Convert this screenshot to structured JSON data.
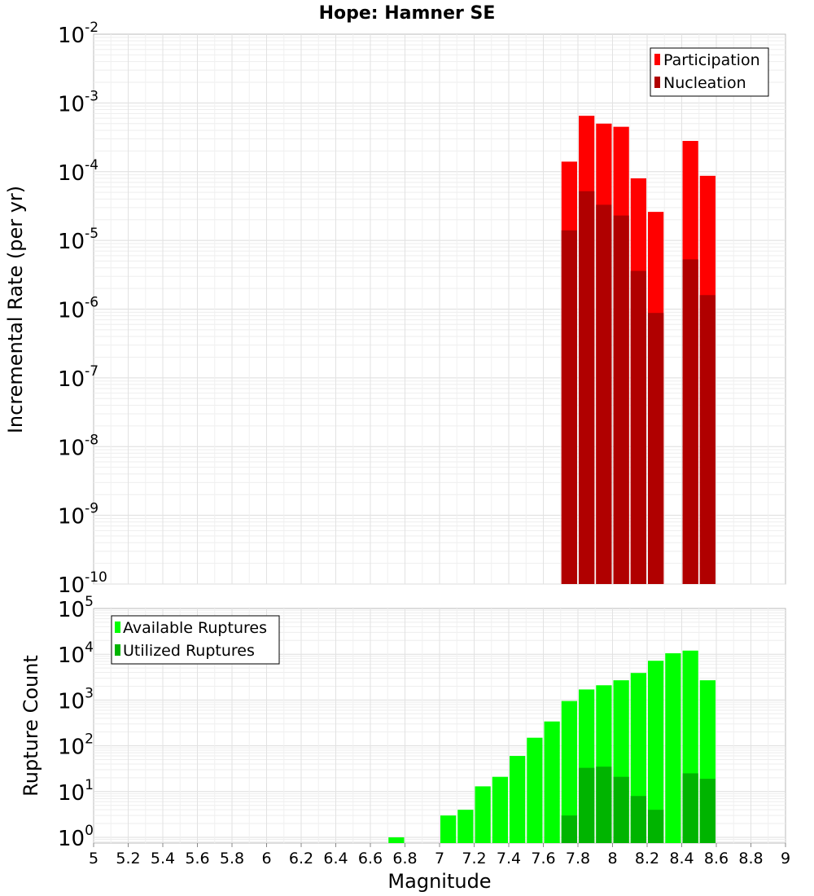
{
  "chart_data": [
    {
      "type": "bar",
      "title": "Hope: Hamner SE",
      "xlabel": "Magnitude",
      "ylabel": "Incremental Rate (per yr)",
      "xlim": [
        5,
        9
      ],
      "ylim": [
        1e-10,
        0.01
      ],
      "yscale": "log",
      "grid": true,
      "legend_position": "top-right",
      "bin_width": 0.1,
      "y_tick_bases": [
        "10",
        "10",
        "10",
        "10",
        "10",
        "10",
        "10",
        "10",
        "10"
      ],
      "y_tick_exponents": [
        "-10",
        "-9",
        "-8",
        "-7",
        "-6",
        "-5",
        "-4",
        "-3",
        "-2"
      ],
      "y_tick_values": [
        1e-10,
        1e-09,
        1e-08,
        1e-07,
        1e-06,
        1e-05,
        0.0001,
        0.001,
        0.01
      ],
      "x": [
        7.75,
        7.85,
        7.95,
        8.05,
        8.15,
        8.25,
        8.45,
        8.55
      ],
      "series": [
        {
          "name": "Participation",
          "color": "#ff0000",
          "values": [
            0.00014,
            0.00065,
            0.0005,
            0.00045,
            8e-05,
            2.6e-05,
            0.00028,
            8.7e-05
          ]
        },
        {
          "name": "Nucleation",
          "color": "#b00000",
          "values": [
            1.4e-05,
            5.2e-05,
            3.3e-05,
            2.3e-05,
            3.6e-06,
            8.8e-07,
            5.3e-06,
            1.6e-06
          ]
        }
      ]
    },
    {
      "type": "bar",
      "xlabel": "Magnitude",
      "ylabel": "Rupture Count",
      "xlim": [
        5,
        9
      ],
      "ylim": [
        0.75,
        100000
      ],
      "yscale": "log",
      "grid": true,
      "legend_position": "top-left",
      "bin_width": 0.1,
      "x_ticks": [
        "5",
        "5.2",
        "5.4",
        "5.6",
        "5.8",
        "6",
        "6.2",
        "6.4",
        "6.6",
        "6.8",
        "7",
        "7.2",
        "7.4",
        "7.6",
        "7.8",
        "8",
        "8.2",
        "8.4",
        "8.6",
        "8.8",
        "9"
      ],
      "x_tick_values": [
        5,
        5.2,
        5.4,
        5.6,
        5.8,
        6,
        6.2,
        6.4,
        6.6,
        6.8,
        7,
        7.2,
        7.4,
        7.6,
        7.8,
        8,
        8.2,
        8.4,
        8.6,
        8.8,
        9
      ],
      "y_tick_bases": [
        "10",
        "10",
        "10",
        "10",
        "10",
        "10"
      ],
      "y_tick_exponents": [
        "0",
        "1",
        "2",
        "3",
        "4",
        "5"
      ],
      "y_tick_values": [
        1,
        10,
        100,
        1000,
        10000,
        100000
      ],
      "series": [
        {
          "name": "Available Ruptures",
          "color": "#00ff00",
          "x": [
            6.75,
            7.05,
            7.15,
            7.25,
            7.35,
            7.45,
            7.55,
            7.65,
            7.75,
            7.85,
            7.95,
            8.05,
            8.15,
            8.25,
            8.35,
            8.45,
            8.55
          ],
          "values": [
            1,
            3,
            4,
            13,
            21,
            60,
            150,
            340,
            950,
            1700,
            2100,
            2700,
            3900,
            7200,
            10500,
            12000,
            2700
          ]
        },
        {
          "name": "Utilized Ruptures",
          "color": "#00b400",
          "x": [
            7.75,
            7.85,
            7.95,
            8.05,
            8.15,
            8.25,
            8.45,
            8.55
          ],
          "values": [
            3,
            33,
            35,
            21,
            8,
            4,
            25,
            19
          ]
        }
      ]
    }
  ]
}
